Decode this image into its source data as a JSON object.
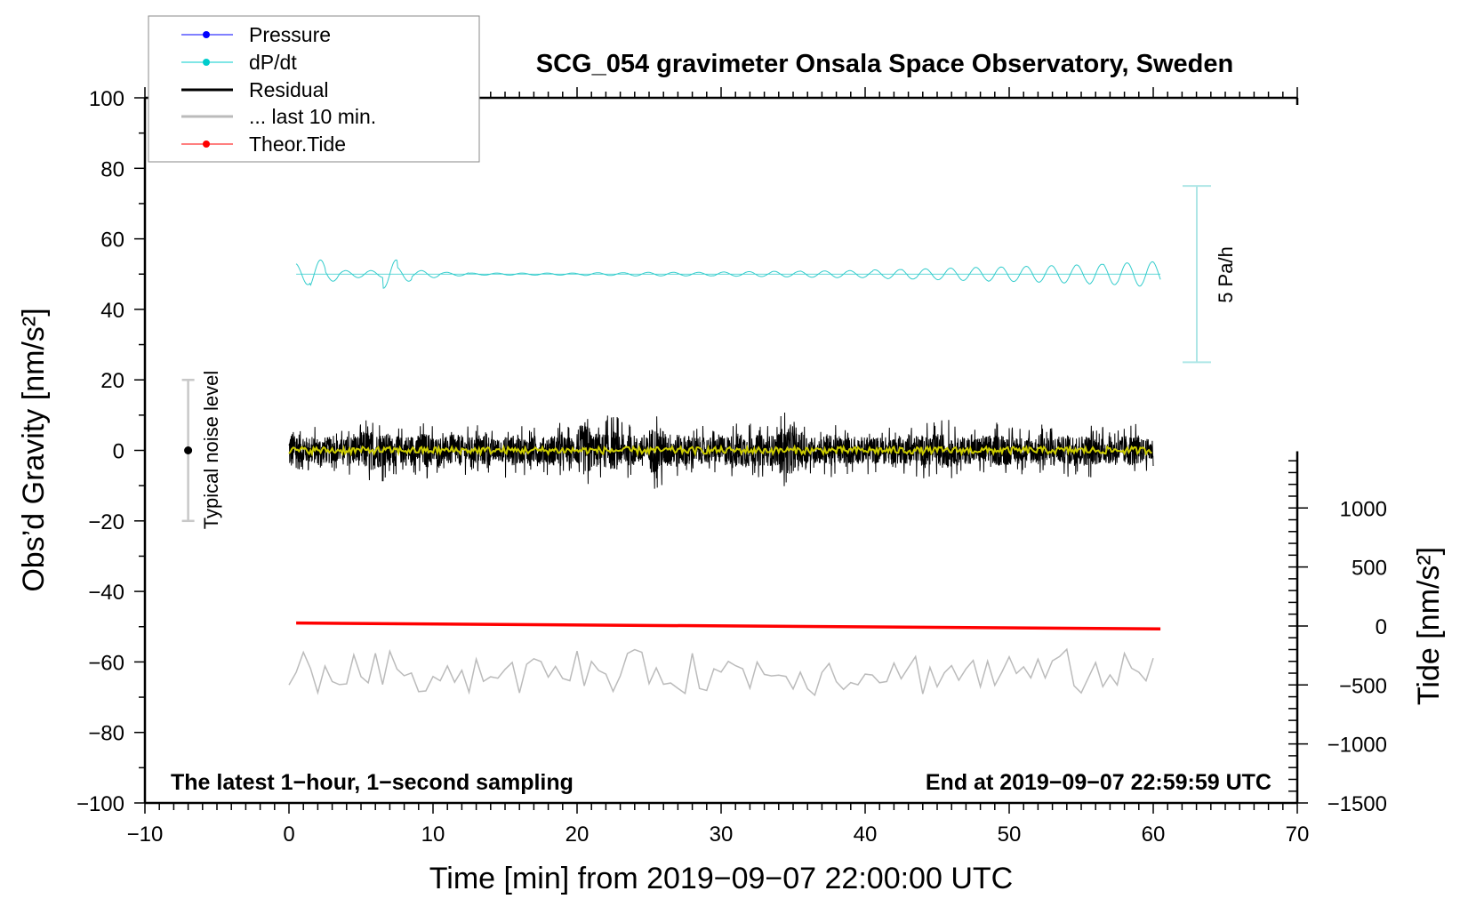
{
  "chart_data": {
    "type": "line",
    "title": "SCG_054 gravimeter Onsala Space Observatory, Sweden",
    "xlabel": "Time [min] from 2019−09−07 22:00:00 UTC",
    "ylabel": "Obs’d Gravity [nm/s²]",
    "ylabel_right": "Tide [nm/s²]",
    "xlim": [
      -10,
      70
    ],
    "ylim": [
      -100,
      100
    ],
    "ylim_right": [
      -1500,
      1480
    ],
    "xticks": [
      -10,
      0,
      10,
      20,
      30,
      40,
      50,
      60,
      70
    ],
    "xtick_labels": [
      "−10",
      "0",
      "10",
      "20",
      "30",
      "40",
      "50",
      "60",
      "70"
    ],
    "yticks": [
      100,
      80,
      60,
      40,
      20,
      0,
      -20,
      -40,
      -60,
      -80,
      -100
    ],
    "ytick_labels": [
      "100",
      "80",
      "60",
      "40",
      "20",
      "0",
      "−20",
      "−40",
      "−60",
      "−80",
      "−100"
    ],
    "yticks_right": [
      1000,
      500,
      0,
      -500,
      -1000,
      -1500
    ],
    "ytick_right_labels": [
      "1000",
      "500",
      "0",
      "−500",
      "−1000",
      "−1500"
    ],
    "grid": false,
    "legend_position": "top-left",
    "legend": [
      {
        "label": "Pressure",
        "color": "#0000ff",
        "marker": "dot"
      },
      {
        "label": "dP/dt",
        "color": "#00cccc",
        "marker": "dot"
      },
      {
        "label": "Residual",
        "color": "#000000",
        "marker": "line"
      },
      {
        "label": "... last 10 min.",
        "color": "#bbbbbb",
        "marker": "line"
      },
      {
        "label": "Theor.Tide",
        "color": "#ff0000",
        "marker": "dot"
      }
    ],
    "annotations": {
      "left_bottom": "The latest 1−hour, 1−second sampling",
      "right_bottom": "End at 2019−09−07 22:59:59 UTC",
      "noise_label": "Typical noise level",
      "noise_range": [
        -20,
        20
      ],
      "noise_x": -7,
      "pressure_scale_label": "5 Pa/h",
      "pressure_scale_range": [
        25,
        75
      ]
    },
    "series": [
      {
        "name": "Residual",
        "color": "#000000",
        "x_range": [
          0,
          60
        ],
        "center": 0,
        "envelope_per_minute": [
          10,
          7,
          7,
          6,
          8,
          10,
          9,
          7,
          8,
          9,
          7,
          8,
          7,
          8,
          6,
          8,
          7,
          7,
          8,
          7,
          13,
          9,
          10,
          8,
          7,
          12,
          9,
          8,
          7,
          7,
          8,
          9,
          8,
          8,
          12,
          9,
          7,
          8,
          7,
          7,
          7,
          7,
          7,
          8,
          8,
          9,
          7,
          7,
          8,
          8,
          7,
          7,
          8,
          7,
          8,
          8,
          7,
          7,
          8,
          6
        ]
      },
      {
        "name": "Residual (smoothed)",
        "color": "#cccc00",
        "x_range": [
          0,
          60
        ],
        "center": 0,
        "amplitude": 1
      },
      {
        "name": "dP/dt",
        "color": "#33cccc",
        "x_range": [
          0.5,
          60.5
        ],
        "center": 50,
        "amplitude_per_minute": [
          3,
          4,
          2,
          1,
          1,
          1,
          4,
          2,
          1,
          1,
          0.5,
          0.5,
          0.3,
          0.3,
          0.3,
          0.3,
          0.3,
          0.3,
          0.3,
          0.3,
          0.4,
          0.4,
          0.4,
          0.5,
          0.5,
          0.5,
          0.5,
          0.5,
          0.5,
          0.6,
          0.6,
          0.7,
          0.7,
          0.8,
          0.8,
          0.9,
          0.9,
          1,
          1,
          1,
          1.2,
          1.3,
          1.4,
          1.5,
          1.6,
          1.7,
          1.8,
          1.9,
          2,
          2.1,
          2.2,
          2.3,
          2.4,
          2.5,
          2.6,
          2.8,
          3,
          3.2,
          3.4,
          3.5
        ]
      },
      {
        "name": "... last 10 min.",
        "color": "#bbbbbb",
        "x_range": [
          0,
          60
        ],
        "center": -63,
        "amplitude": 6,
        "ymax": -51,
        "ymin": -71
      },
      {
        "name": "Theor.Tide",
        "color": "#ff0000",
        "axis": "right",
        "x": [
          0.5,
          60.5
        ],
        "y": [
          25,
          -25
        ]
      }
    ]
  }
}
